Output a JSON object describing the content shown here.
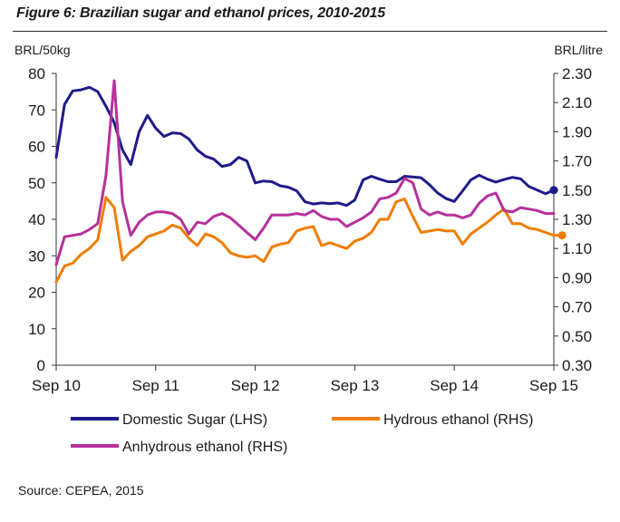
{
  "title": "Figure 6: Brazilian sugar and ethanol prices, 2010-2015",
  "source": "Source: CEPEA, 2015",
  "chart_data": {
    "type": "line",
    "title": "Figure 6: Brazilian sugar and ethanol prices, 2010-2015",
    "x_tick_labels": [
      "Sep 10",
      "Sep 11",
      "Sep 12",
      "Sep 13",
      "Sep 14",
      "Sep 15"
    ],
    "left_axis": {
      "label": "BRL/50kg",
      "min": 0,
      "max": 80,
      "ticks": [
        0,
        10,
        20,
        30,
        40,
        50,
        60,
        70,
        80
      ]
    },
    "right_axis": {
      "label": "BRL/litre",
      "min": 0.3,
      "max": 2.3,
      "ticks": [
        "0.30",
        "0.50",
        "0.70",
        "0.90",
        "1.10",
        "1.30",
        "1.50",
        "1.70",
        "1.90",
        "2.10",
        "2.30"
      ]
    },
    "grid": false,
    "legend_position": "bottom",
    "series": [
      {
        "name": "Domestic Sugar (LHS)",
        "axis": "left",
        "color": "#1f1b8a",
        "values": [
          57,
          71.5,
          75.2,
          75.5,
          76.2,
          75,
          71,
          66.5,
          59,
          55,
          64,
          68.5,
          65,
          62.7,
          63.7,
          63.5,
          62,
          59,
          57.3,
          56.5,
          54.5,
          55,
          57,
          56,
          50,
          50.5,
          50.3,
          49.2,
          48.8,
          47.8,
          44.8,
          44.2,
          44.5,
          44.3,
          44.5,
          43.8,
          45.3,
          50.8,
          51.8,
          51,
          50.3,
          50.3,
          51.8,
          51.6,
          51.4,
          49.5,
          47.2,
          45.7,
          44.9,
          47.8,
          50.8,
          52.1,
          51,
          50.2,
          50.9,
          51.5,
          51.1,
          49,
          48,
          47,
          48
        ]
      },
      {
        "name": "Hydrous ethanol (RHS)",
        "axis": "right",
        "color": "#f07d00",
        "values": [
          0.87,
          0.98,
          1.0,
          1.06,
          1.1,
          1.16,
          1.45,
          1.38,
          1.02,
          1.08,
          1.12,
          1.18,
          1.2,
          1.22,
          1.26,
          1.24,
          1.17,
          1.12,
          1.2,
          1.18,
          1.14,
          1.07,
          1.05,
          1.04,
          1.05,
          1.01,
          1.11,
          1.13,
          1.14,
          1.22,
          1.24,
          1.25,
          1.12,
          1.14,
          1.12,
          1.1,
          1.15,
          1.17,
          1.21,
          1.3,
          1.3,
          1.42,
          1.44,
          1.32,
          1.21,
          1.22,
          1.23,
          1.22,
          1.22,
          1.13,
          1.2,
          1.24,
          1.28,
          1.33,
          1.37,
          1.27,
          1.27,
          1.24,
          1.23,
          1.21,
          1.19,
          1.19
        ]
      },
      {
        "name": "Anhydrous ethanol (RHS)",
        "axis": "right",
        "color": "#b5319b",
        "values": [
          0.99,
          1.18,
          1.19,
          1.2,
          1.23,
          1.27,
          1.6,
          2.25,
          1.42,
          1.19,
          1.28,
          1.33,
          1.35,
          1.35,
          1.34,
          1.3,
          1.2,
          1.28,
          1.27,
          1.32,
          1.34,
          1.31,
          1.26,
          1.21,
          1.16,
          1.24,
          1.33,
          1.33,
          1.33,
          1.34,
          1.33,
          1.36,
          1.32,
          1.3,
          1.3,
          1.25,
          1.28,
          1.31,
          1.35,
          1.44,
          1.45,
          1.48,
          1.58,
          1.55,
          1.37,
          1.33,
          1.35,
          1.33,
          1.33,
          1.31,
          1.33,
          1.41,
          1.46,
          1.48,
          1.36,
          1.35,
          1.38,
          1.37,
          1.36,
          1.34,
          1.34
        ]
      }
    ]
  }
}
